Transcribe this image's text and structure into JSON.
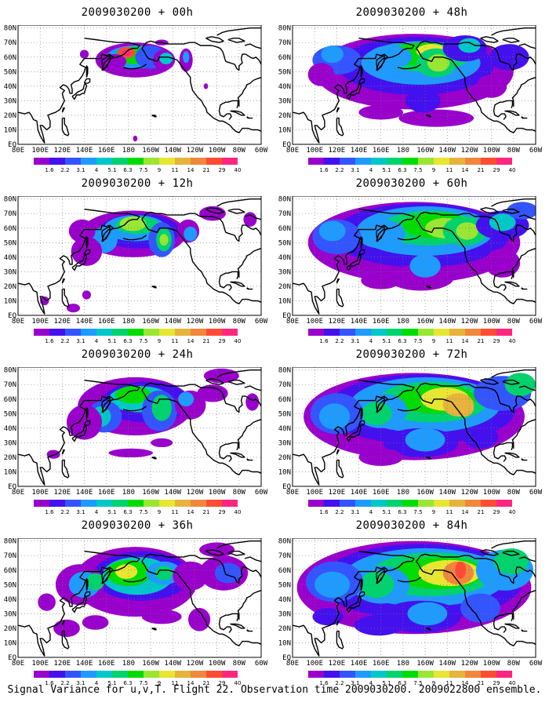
{
  "caption": "Signal Variance for u,v,T. Flight 22. Observation time 2009030200. 2009022800 ensemble.",
  "colors": [
    "#9900cc",
    "#4411ee",
    "#3355ff",
    "#1f9bff",
    "#00c8c8",
    "#00d26e",
    "#00dc00",
    "#99e633",
    "#e6e633",
    "#e6b33c",
    "#f0873c",
    "#ff4c33",
    "#ff2680"
  ],
  "color_levels": [
    "1.6",
    "2.2",
    "3.1",
    "4",
    "5.1",
    "6.3",
    "7.5",
    "9",
    "11",
    "14",
    "21",
    "29",
    "40"
  ],
  "lat_labels": [
    "80N",
    "70N",
    "60N",
    "50N",
    "40N",
    "30N",
    "20N",
    "10N",
    "EQ"
  ],
  "lon_labels": [
    "80E",
    "100E",
    "120E",
    "140E",
    "160E",
    "180",
    "160W",
    "140W",
    "120W",
    "100W",
    "80W",
    "60W"
  ],
  "chart_data": [
    {
      "type": "heatmap",
      "title": "2009030200 + 00h",
      "lead_hours": 0,
      "max_level_index": 12
    },
    {
      "type": "heatmap",
      "title": "2009030200 + 12h",
      "lead_hours": 12,
      "max_level_index": 8
    },
    {
      "type": "heatmap",
      "title": "2009030200 + 24h",
      "lead_hours": 24,
      "max_level_index": 8
    },
    {
      "type": "heatmap",
      "title": "2009030200 + 36h",
      "lead_hours": 36,
      "max_level_index": 9
    },
    {
      "type": "heatmap",
      "title": "2009030200 + 48h",
      "lead_hours": 48,
      "max_level_index": 9
    },
    {
      "type": "heatmap",
      "title": "2009030200 + 60h",
      "lead_hours": 60,
      "max_level_index": 9
    },
    {
      "type": "heatmap",
      "title": "2009030200 + 72h",
      "lead_hours": 72,
      "max_level_index": 9
    },
    {
      "type": "heatmap",
      "title": "2009030200 + 84h",
      "lead_hours": 84,
      "max_level_index": 11
    }
  ]
}
